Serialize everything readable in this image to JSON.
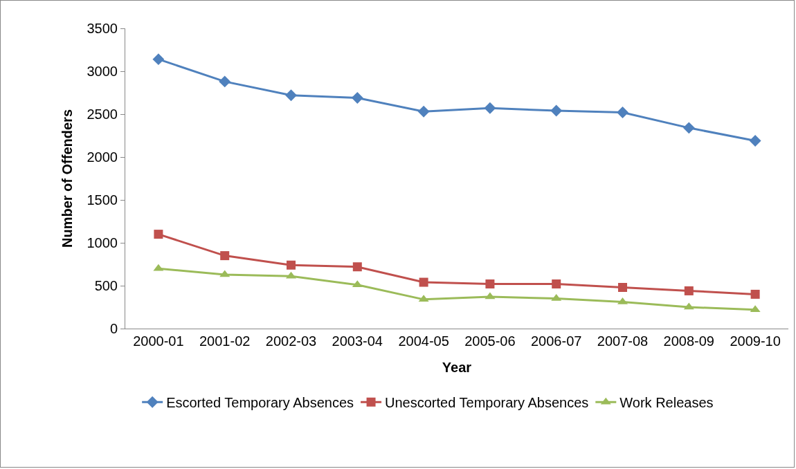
{
  "chart_data": {
    "type": "line",
    "xlabel": "Year",
    "ylabel": "Number of Offenders",
    "categories": [
      "2000-01",
      "2001-02",
      "2002-03",
      "2003-04",
      "2004-05",
      "2005-06",
      "2006-07",
      "2007-08",
      "2008-09",
      "2009-10"
    ],
    "series": [
      {
        "name": "Escorted Temporary Absences",
        "color": "#4f81bd",
        "marker": "diamond",
        "values": [
          3140,
          2880,
          2720,
          2690,
          2530,
          2570,
          2540,
          2520,
          2340,
          2190
        ]
      },
      {
        "name": "Unescorted Temporary Absences",
        "color": "#c0504d",
        "marker": "square",
        "values": [
          1100,
          850,
          740,
          720,
          540,
          520,
          520,
          480,
          440,
          400
        ]
      },
      {
        "name": "Work Releases",
        "color": "#9bbb59",
        "marker": "triangle",
        "values": [
          700,
          630,
          610,
          510,
          340,
          370,
          350,
          310,
          250,
          220
        ]
      }
    ],
    "ylim": [
      0,
      3500
    ],
    "yticks": [
      0,
      500,
      1000,
      1500,
      2000,
      2500,
      3000,
      3500
    ],
    "grid": false,
    "legend": "bottom",
    "line_style": "solid"
  }
}
